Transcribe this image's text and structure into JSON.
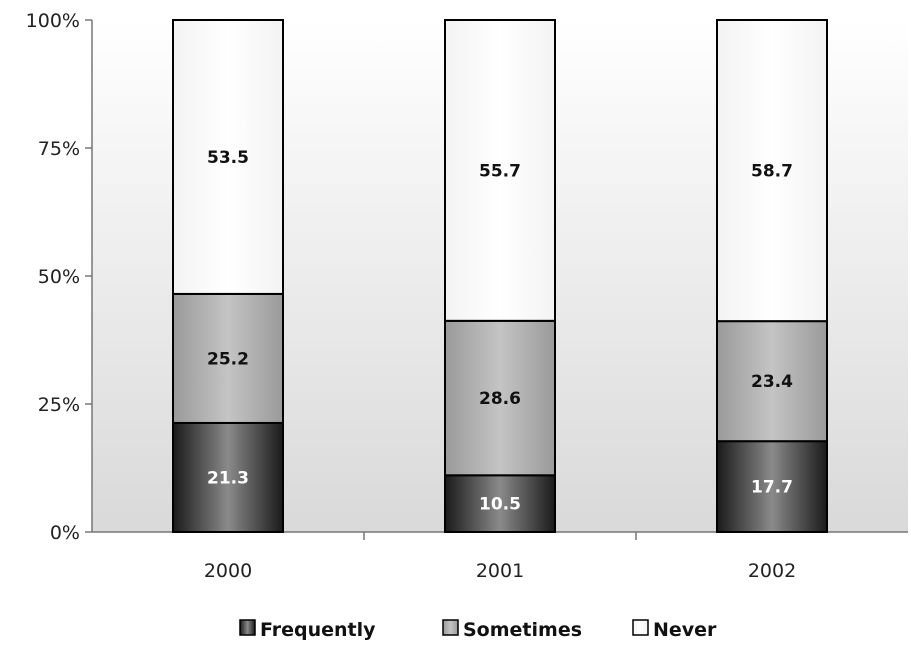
{
  "chart_data": {
    "type": "bar",
    "stacked": true,
    "percent_stacked": true,
    "categories": [
      "2000",
      "2001",
      "2002"
    ],
    "series": [
      {
        "name": "Frequently",
        "values": [
          21.3,
          10.5,
          17.7
        ],
        "color": "#333333"
      },
      {
        "name": "Sometimes",
        "values": [
          25.2,
          28.6,
          23.4
        ],
        "color": "#a9a9a9"
      },
      {
        "name": "Never",
        "values": [
          53.5,
          55.7,
          58.7
        ],
        "color": "#f5f5f5"
      }
    ],
    "ylim": [
      0,
      100
    ],
    "yticks": [
      "0%",
      "25%",
      "50%",
      "75%",
      "100%"
    ],
    "ytick_values": [
      0,
      25,
      50,
      75,
      100
    ],
    "legend_position": "bottom",
    "plot_background": "#e0e0e0"
  }
}
